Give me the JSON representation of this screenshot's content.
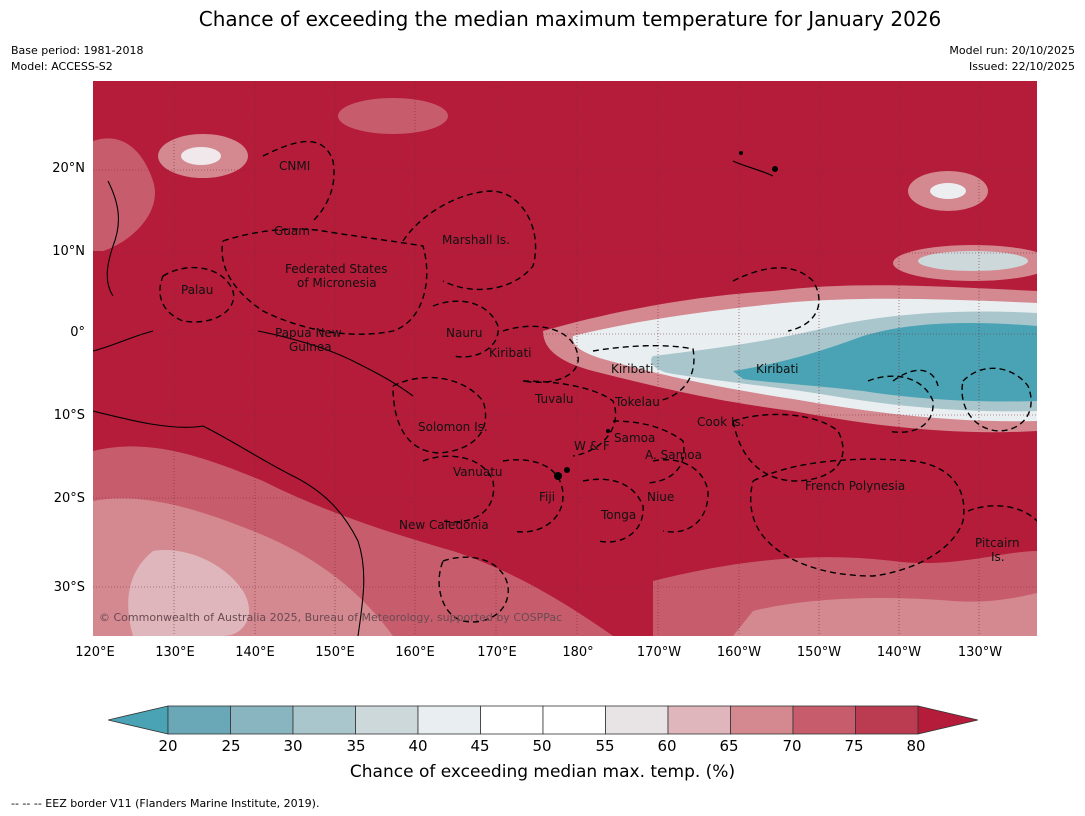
{
  "title": "Chance of exceeding the median maximum temperature for January 2026",
  "meta": {
    "base_period": "Base period: 1981-2018",
    "model": "Model: ACCESS-S2",
    "model_run": "Model run: 20/10/2025",
    "issued": "Issued: 22/10/2025"
  },
  "copyright": "© Commonwealth of Australia 2025, Bureau of Meteorology, supported by COSPPac",
  "axes": {
    "lat_labels": [
      "20°N",
      "10°N",
      "0°",
      "10°S",
      "20°S",
      "30°S"
    ],
    "lon_labels": [
      "120°E",
      "130°E",
      "140°E",
      "150°E",
      "160°E",
      "170°E",
      "180°",
      "170°W",
      "160°W",
      "150°W",
      "140°W",
      "130°W"
    ]
  },
  "regions": [
    "CNMI",
    "Guam",
    "Marshall Is.",
    "Federated States",
    "of Micronesia",
    "Palau",
    "Papua New",
    "Guinea",
    "Nauru",
    "Kiribati",
    "Kiribati",
    "Kiribati",
    "Tuvalu",
    "Tokelau",
    "Solomon Is.",
    "W & F",
    "Samoa",
    "A. Samoa",
    "Cook Is.",
    "Vanuatu",
    "Fiji",
    "Niue",
    "Tonga",
    "New Caledonia",
    "French Polynesia",
    "Pitcairn",
    "Is."
  ],
  "legend": {
    "ticks": [
      "20",
      "25",
      "30",
      "35",
      "40",
      "45",
      "50",
      "55",
      "60",
      "65",
      "70",
      "75",
      "80"
    ],
    "colors": [
      "#4aa3b4",
      "#6aa8b8",
      "#89b5c0",
      "#a9c6cc",
      "#ccd8da",
      "#e9eef0",
      "#ffffff",
      "#ffffff",
      "#e8e4e6",
      "#deb6bc",
      "#d48890",
      "#c75d6c",
      "#bb3c50",
      "#b41c3a"
    ],
    "label": "Chance of exceeding median max. temp. (%)"
  },
  "footnote": "-- -- -- EEZ border V11 (Flanders Marine Institute, 2019)."
}
